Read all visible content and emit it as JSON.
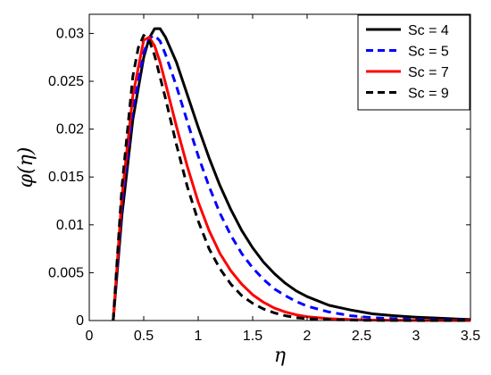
{
  "chart_data": {
    "type": "line",
    "xlabel": "η",
    "ylabel": "φ(η)",
    "xlim": [
      0,
      3.5
    ],
    "ylim": [
      0,
      0.032
    ],
    "xticks": [
      "0",
      "0.5",
      "1",
      "1.5",
      "2",
      "2.5",
      "3",
      "3.5"
    ],
    "yticks": [
      "0",
      "0.005",
      "0.01",
      "0.015",
      "0.02",
      "0.025",
      "0.03"
    ],
    "grid": false,
    "legend_position": "top-right",
    "series": [
      {
        "name": "Sc = 4",
        "color": "#000000",
        "dash": "solid",
        "x": [
          0.22,
          0.3,
          0.4,
          0.5,
          0.55,
          0.6,
          0.65,
          0.7,
          0.8,
          0.9,
          1.0,
          1.1,
          1.2,
          1.3,
          1.4,
          1.5,
          1.6,
          1.7,
          1.8,
          1.9,
          2.0,
          2.2,
          2.4,
          2.6,
          2.8,
          3.0,
          3.2,
          3.5
        ],
        "y": [
          0.0,
          0.011,
          0.021,
          0.0275,
          0.0295,
          0.0305,
          0.0305,
          0.0296,
          0.027,
          0.0236,
          0.0202,
          0.017,
          0.0141,
          0.0116,
          0.0094,
          0.0076,
          0.0061,
          0.0049,
          0.0039,
          0.0031,
          0.0025,
          0.0016,
          0.0011,
          0.0007,
          0.0005,
          0.00035,
          0.00025,
          0.0001
        ]
      },
      {
        "name": "Sc = 5",
        "color": "#0000ff",
        "dash": "dashed",
        "x": [
          0.22,
          0.3,
          0.4,
          0.5,
          0.55,
          0.6,
          0.65,
          0.7,
          0.8,
          0.9,
          1.0,
          1.1,
          1.2,
          1.3,
          1.4,
          1.5,
          1.6,
          1.7,
          1.8,
          1.9,
          2.0,
          2.2,
          2.4,
          2.6,
          2.8,
          3.0,
          3.5
        ],
        "y": [
          0.0,
          0.012,
          0.022,
          0.028,
          0.0295,
          0.0298,
          0.0292,
          0.0278,
          0.0245,
          0.0208,
          0.0172,
          0.014,
          0.0112,
          0.0089,
          0.007,
          0.0055,
          0.0043,
          0.0033,
          0.0026,
          0.002,
          0.0015,
          0.0009,
          0.0005,
          0.0003,
          0.0002,
          0.0001,
          3e-05
        ]
      },
      {
        "name": "Sc = 7",
        "color": "#ff0000",
        "dash": "solid",
        "x": [
          0.22,
          0.3,
          0.4,
          0.5,
          0.55,
          0.6,
          0.65,
          0.7,
          0.8,
          0.9,
          1.0,
          1.1,
          1.2,
          1.3,
          1.4,
          1.5,
          1.6,
          1.7,
          1.8,
          1.9,
          2.0,
          2.2,
          2.4,
          2.6,
          3.0,
          3.5
        ],
        "y": [
          0.0,
          0.013,
          0.0235,
          0.0293,
          0.0296,
          0.0287,
          0.027,
          0.0248,
          0.0203,
          0.0161,
          0.0124,
          0.0094,
          0.007,
          0.0052,
          0.0038,
          0.0027,
          0.0019,
          0.0013,
          0.0009,
          0.0006,
          0.0004,
          0.0002,
          0.0001,
          5e-05,
          1e-05,
          0.0
        ]
      },
      {
        "name": "Sc = 9",
        "color": "#000000",
        "dash": "dashed",
        "x": [
          0.22,
          0.3,
          0.4,
          0.45,
          0.5,
          0.55,
          0.6,
          0.7,
          0.8,
          0.9,
          1.0,
          1.1,
          1.2,
          1.3,
          1.4,
          1.5,
          1.6,
          1.7,
          1.8,
          1.9,
          2.0,
          2.2,
          2.5,
          3.0,
          3.5
        ],
        "y": [
          0.0,
          0.014,
          0.0255,
          0.0285,
          0.0298,
          0.0293,
          0.0277,
          0.0232,
          0.0184,
          0.014,
          0.0104,
          0.0075,
          0.0054,
          0.0038,
          0.0026,
          0.0018,
          0.0012,
          0.0008,
          0.0005,
          0.0003,
          0.0002,
          0.0001,
          3e-05,
          0.0,
          0.0
        ]
      }
    ]
  }
}
